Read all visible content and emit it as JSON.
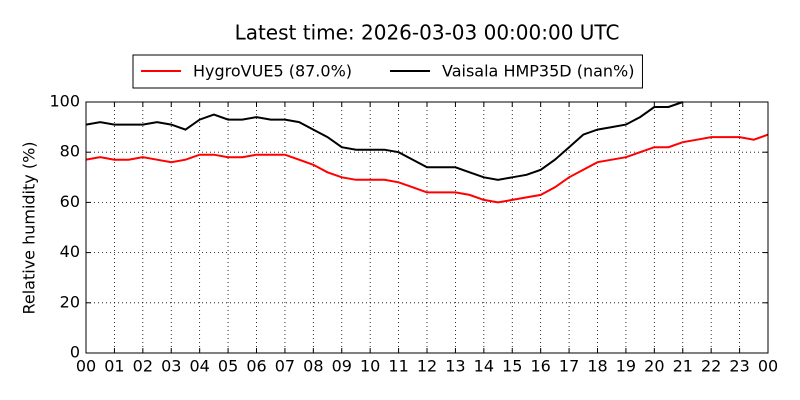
{
  "chart_data": {
    "type": "line",
    "title": "Latest time: 2026-03-03 00:00:00 UTC",
    "y_label": "Relative humidity (%)",
    "x": [
      0,
      0.5,
      1,
      1.5,
      2,
      2.5,
      3,
      3.5,
      4,
      4.5,
      5,
      5.5,
      6,
      6.5,
      7,
      7.5,
      8,
      8.5,
      9,
      9.5,
      10,
      10.5,
      11,
      11.5,
      12,
      12.5,
      13,
      13.5,
      14,
      14.5,
      15,
      15.5,
      16,
      16.5,
      17,
      17.5,
      18,
      18.5,
      19,
      19.5,
      20,
      20.5,
      21,
      21.5,
      22,
      22.5,
      23,
      23.5,
      24
    ],
    "series": [
      {
        "name": "HygroVUE5 (87.0%)",
        "color": "#ff0000",
        "values": [
          77,
          78,
          77,
          77,
          78,
          77,
          76,
          77,
          79,
          79,
          78,
          78,
          79,
          79,
          79,
          77,
          75,
          72,
          70,
          69,
          69,
          69,
          68,
          66,
          64,
          64,
          64,
          63,
          61,
          60,
          61,
          62,
          63,
          66,
          70,
          73,
          76,
          77,
          78,
          80,
          82,
          82,
          84,
          85,
          86,
          86,
          86,
          85,
          87
        ]
      },
      {
        "name": "Vaisala HMP35D (nan%)",
        "color": "#000000",
        "values": [
          91,
          92,
          91,
          91,
          91,
          92,
          91,
          89,
          93,
          95,
          93,
          93,
          94,
          93,
          93,
          92,
          89,
          86,
          82,
          81,
          81,
          81,
          80,
          77,
          74,
          74,
          74,
          72,
          70,
          69,
          70,
          71,
          73,
          77,
          82,
          87,
          89,
          90,
          91,
          94,
          98,
          98,
          100,
          null,
          null,
          null,
          null,
          null,
          null
        ]
      }
    ],
    "xlim": [
      0,
      24
    ],
    "xticks": [
      {
        "value": 0,
        "label": "00"
      },
      {
        "value": 1,
        "label": "01"
      },
      {
        "value": 2,
        "label": "02"
      },
      {
        "value": 3,
        "label": "03"
      },
      {
        "value": 4,
        "label": "04"
      },
      {
        "value": 5,
        "label": "05"
      },
      {
        "value": 6,
        "label": "06"
      },
      {
        "value": 7,
        "label": "07"
      },
      {
        "value": 8,
        "label": "08"
      },
      {
        "value": 9,
        "label": "09"
      },
      {
        "value": 10,
        "label": "10"
      },
      {
        "value": 11,
        "label": "11"
      },
      {
        "value": 12,
        "label": "12"
      },
      {
        "value": 13,
        "label": "13"
      },
      {
        "value": 14,
        "label": "14"
      },
      {
        "value": 15,
        "label": "15"
      },
      {
        "value": 16,
        "label": "16"
      },
      {
        "value": 17,
        "label": "17"
      },
      {
        "value": 18,
        "label": "18"
      },
      {
        "value": 19,
        "label": "19"
      },
      {
        "value": 20,
        "label": "20"
      },
      {
        "value": 21,
        "label": "21"
      },
      {
        "value": 22,
        "label": "22"
      },
      {
        "value": 23,
        "label": "23"
      },
      {
        "value": 24,
        "label": "00"
      }
    ],
    "ylim": [
      0,
      100
    ],
    "yticks": [
      0,
      20,
      40,
      60,
      80,
      100
    ],
    "grid": true,
    "legend": "top"
  }
}
